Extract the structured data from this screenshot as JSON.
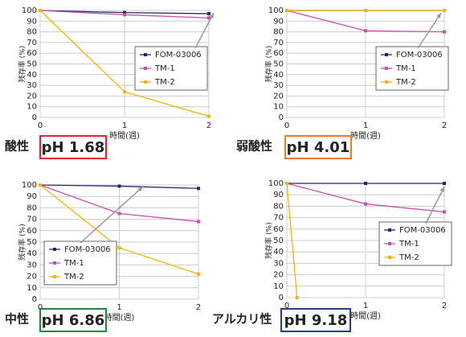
{
  "chart_data": [
    {
      "type": "line",
      "condition": "酸性",
      "ph": "pH 1.68",
      "condition_color": "#e8202a",
      "x": [
        0,
        1,
        2
      ],
      "xlim": [
        0,
        2
      ],
      "xticks": [
        0,
        1,
        2
      ],
      "ylim": [
        0,
        100
      ],
      "yticks": [
        0,
        10,
        20,
        30,
        40,
        50,
        60,
        70,
        80,
        90,
        100
      ],
      "x_label": "時間(週)",
      "y_label": "残存率 (%)",
      "grid": true,
      "series": [
        {
          "name": "FOM-03006",
          "color": "#1f2a6e",
          "values": [
            100,
            98,
            97
          ]
        },
        {
          "name": "TM-1",
          "color": "#c94fae",
          "values": [
            100,
            96,
            93
          ]
        },
        {
          "name": "TM-2",
          "color": "#f5b400",
          "values": [
            100,
            24,
            1
          ]
        }
      ]
    },
    {
      "type": "line",
      "condition": "弱酸性",
      "ph": "pH 4.01",
      "condition_color": "#f07a22",
      "x": [
        0,
        1,
        2
      ],
      "xlim": [
        0,
        2
      ],
      "xticks": [
        0,
        1,
        2
      ],
      "ylim": [
        0,
        100
      ],
      "yticks": [
        0,
        10,
        20,
        30,
        40,
        50,
        60,
        70,
        80,
        90,
        100
      ],
      "x_label": "時間(週)",
      "y_label": "残存率 (%)",
      "grid": true,
      "series": [
        {
          "name": "FOM-03006",
          "color": "#1f2a6e",
          "values": [
            100,
            100,
            100
          ]
        },
        {
          "name": "TM-1",
          "color": "#c94fae",
          "values": [
            100,
            81,
            80
          ]
        },
        {
          "name": "TM-2",
          "color": "#f5b400",
          "values": [
            100,
            100,
            100
          ]
        }
      ]
    },
    {
      "type": "line",
      "condition": "中性",
      "ph": "pH 6.86",
      "condition_color": "#1a8a3a",
      "x": [
        0,
        1,
        2
      ],
      "xlim": [
        0,
        2
      ],
      "xticks": [
        0,
        1,
        2
      ],
      "ylim": [
        0,
        100
      ],
      "yticks": [
        0,
        10,
        20,
        30,
        40,
        50,
        60,
        70,
        80,
        90,
        100
      ],
      "x_label": "時間(週)",
      "y_label": "残存率 (%)",
      "grid": true,
      "series": [
        {
          "name": "FOM-03006",
          "color": "#1f2a6e",
          "values": [
            100,
            99,
            97
          ]
        },
        {
          "name": "TM-1",
          "color": "#c94fae",
          "values": [
            100,
            75,
            68
          ]
        },
        {
          "name": "TM-2",
          "color": "#f5b400",
          "values": [
            100,
            45,
            22
          ]
        }
      ]
    },
    {
      "type": "line",
      "condition": "アルカリ性",
      "ph": "pH 9.18",
      "condition_color": "#1f3f8a",
      "x": [
        0,
        1,
        2
      ],
      "xlim": [
        0,
        2
      ],
      "xticks": [
        0,
        1,
        2
      ],
      "ylim": [
        0,
        100
      ],
      "yticks": [
        0,
        10,
        20,
        30,
        40,
        50,
        60,
        70,
        80,
        90,
        100
      ],
      "x_label": "時間(週)",
      "y_label": "残存率 (%)",
      "grid": true,
      "series": [
        {
          "name": "FOM-03006",
          "color": "#1f2a6e",
          "values": [
            100,
            100,
            100
          ]
        },
        {
          "name": "TM-1",
          "color": "#c94fae",
          "values": [
            100,
            82,
            75
          ]
        },
        {
          "name": "TM-2",
          "color": "#f5b400",
          "x": [
            0,
            0.13
          ],
          "values": [
            100,
            0
          ]
        }
      ]
    }
  ]
}
